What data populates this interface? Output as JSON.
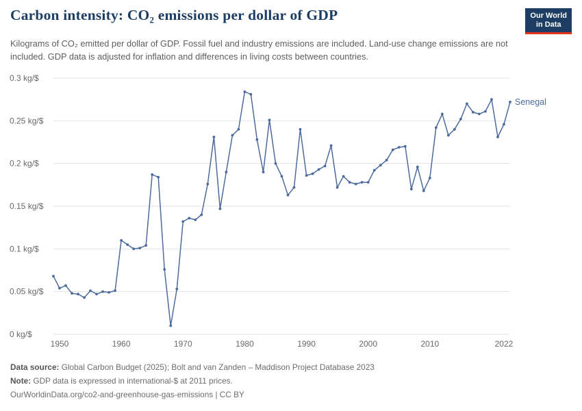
{
  "header": {
    "title": "Carbon intensity: CO₂ emissions per dollar of GDP",
    "subtitle": "Kilograms of CO₂ emitted per dollar of GDP. Fossil fuel and industry emissions are included. Land-use change emissions are not included. GDP data is adjusted for inflation and differences in living costs between countries.",
    "logo": {
      "line1": "Our World",
      "line2": "in Data",
      "bg_color": "#1d3d63",
      "accent_color": "#e0311b"
    }
  },
  "chart_data": {
    "type": "line",
    "title": "Carbon intensity: CO₂ emissions per dollar of GDP",
    "xlabel": "",
    "ylabel": "",
    "xlim": [
      1949,
      2023
    ],
    "ylim": [
      0,
      0.3
    ],
    "grid": true,
    "legend_position": "end-of-line",
    "x_ticks": [
      1950,
      1960,
      1970,
      1980,
      1990,
      2000,
      2010,
      2022
    ],
    "y_ticks": [
      0,
      0.05,
      0.1,
      0.15,
      0.2,
      0.25,
      0.3
    ],
    "y_tick_labels": [
      "0 kg/$",
      "0.05 kg/$",
      "0.1 kg/$",
      "0.15 kg/$",
      "0.2 kg/$",
      "0.25 kg/$",
      "0.3 kg/$"
    ],
    "series": [
      {
        "name": "Senegal",
        "color": "#4C6A9C",
        "x": [
          1949,
          1950,
          1951,
          1952,
          1953,
          1954,
          1955,
          1956,
          1957,
          1958,
          1959,
          1960,
          1961,
          1962,
          1963,
          1964,
          1965,
          1966,
          1967,
          1968,
          1969,
          1970,
          1971,
          1972,
          1973,
          1974,
          1975,
          1976,
          1977,
          1978,
          1979,
          1980,
          1981,
          1982,
          1983,
          1984,
          1985,
          1986,
          1987,
          1988,
          1989,
          1990,
          1991,
          1992,
          1993,
          1994,
          1995,
          1996,
          1997,
          1998,
          1999,
          2000,
          2001,
          2002,
          2003,
          2004,
          2005,
          2006,
          2007,
          2008,
          2009,
          2010,
          2011,
          2012,
          2013,
          2014,
          2015,
          2016,
          2017,
          2018,
          2019,
          2020,
          2021,
          2022,
          2023
        ],
        "values": [
          0.068,
          0.054,
          0.057,
          0.048,
          0.047,
          0.043,
          0.051,
          0.047,
          0.05,
          0.049,
          0.051,
          0.11,
          0.105,
          0.1,
          0.101,
          0.104,
          0.187,
          0.184,
          0.076,
          0.01,
          0.053,
          0.132,
          0.136,
          0.134,
          0.14,
          0.176,
          0.231,
          0.147,
          0.19,
          0.233,
          0.24,
          0.284,
          0.281,
          0.228,
          0.19,
          0.251,
          0.2,
          0.185,
          0.163,
          0.172,
          0.24,
          0.186,
          0.188,
          0.193,
          0.197,
          0.221,
          0.172,
          0.185,
          0.178,
          0.176,
          0.178,
          0.178,
          0.192,
          0.198,
          0.204,
          0.216,
          0.219,
          0.22,
          0.17,
          0.196,
          0.168,
          0.183,
          0.242,
          0.258,
          0.233,
          0.24,
          0.252,
          0.27,
          0.26,
          0.258,
          0.261,
          0.275,
          0.231,
          0.246,
          0.272
        ]
      }
    ]
  },
  "footer": {
    "source_label": "Data source:",
    "source_text": " Global Carbon Budget (2025); Bolt and van Zanden – Maddison Project Database 2023",
    "note_label": "Note:",
    "note_text": " GDP data is expressed in international-$ at 2011 prices.",
    "url": "OurWorldinData.org/co2-and-greenhouse-gas-emissions | CC BY"
  }
}
